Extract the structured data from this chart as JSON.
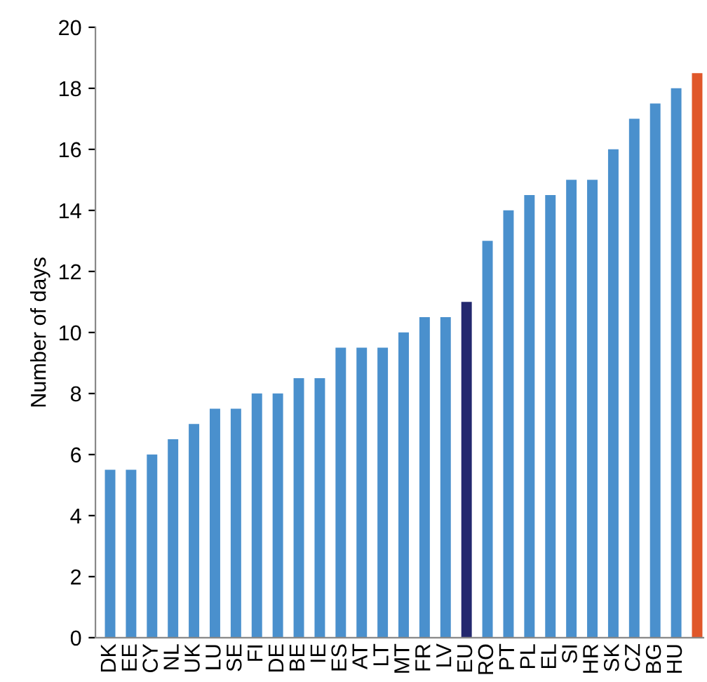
{
  "chart_data": {
    "type": "bar",
    "ylabel": "Number of days",
    "categories": [
      "DK",
      "EE",
      "CY",
      "NL",
      "UK",
      "LU",
      "SE",
      "FI",
      "DE",
      "BE",
      "IE",
      "ES",
      "AT",
      "LT",
      "MT",
      "FR",
      "LV",
      "EU",
      "RO",
      "PT",
      "PL",
      "EL",
      "SI",
      "HR",
      "SK",
      "CZ",
      "BG",
      "HU",
      null
    ],
    "values": [
      5.5,
      5.5,
      6,
      6.5,
      7,
      7.5,
      7.5,
      8,
      8,
      8.5,
      8.5,
      9.5,
      9.5,
      9.5,
      10,
      10.5,
      10.5,
      11,
      13,
      14,
      14.5,
      14.5,
      15,
      15,
      16,
      17,
      17.5,
      18,
      18.5
    ],
    "colors": [
      "#4a90cd",
      "#4a90cd",
      "#4a90cd",
      "#4a90cd",
      "#4a90cd",
      "#4a90cd",
      "#4a90cd",
      "#4a90cd",
      "#4a90cd",
      "#4a90cd",
      "#4a90cd",
      "#4a90cd",
      "#4a90cd",
      "#4a90cd",
      "#4a90cd",
      "#4a90cd",
      "#4a90cd",
      "#23286e",
      "#4a90cd",
      "#4a90cd",
      "#4a90cd",
      "#4a90cd",
      "#4a90cd",
      "#4a90cd",
      "#4a90cd",
      "#4a90cd",
      "#4a90cd",
      "#4a90cd",
      "#e0572a"
    ],
    "ylim": [
      0,
      20
    ],
    "yticks": [
      0,
      2,
      4,
      6,
      8,
      10,
      12,
      14,
      16,
      18,
      20
    ],
    "grid": false
  }
}
